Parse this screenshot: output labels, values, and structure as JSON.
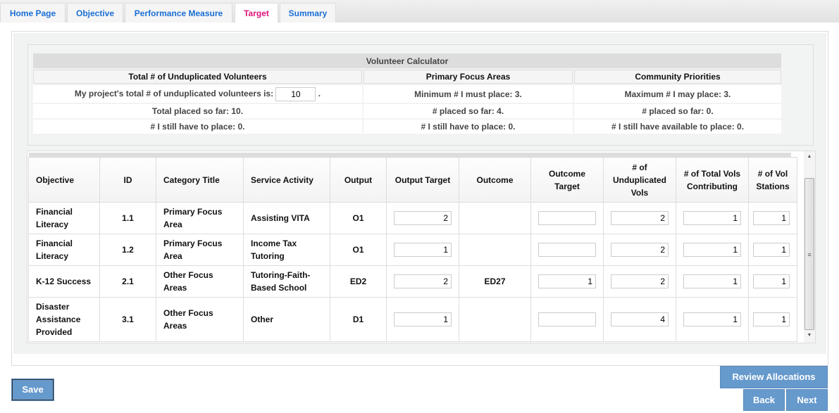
{
  "tabs": [
    {
      "label": "Home Page"
    },
    {
      "label": "Objective"
    },
    {
      "label": "Performance Measure"
    },
    {
      "label": "Target",
      "active": true
    },
    {
      "label": "Summary"
    }
  ],
  "calculator": {
    "title": "Volunteer Calculator",
    "headers": [
      "Total # of Unduplicated Volunteers",
      "Primary Focus Areas",
      "Community Priorities"
    ],
    "total_prefix": "My project's total # of unduplicated volunteers is:",
    "total_value": "10",
    "total_suffix": ".",
    "rows": [
      [
        "Total placed so far: 10.",
        "# placed so far: 4.",
        "# placed so far: 0."
      ],
      [
        "# I still have to place: 0.",
        "# I still have to place: 0.",
        "# I still have available to place: 0."
      ]
    ],
    "primary_min": "Minimum # I must place: 3.",
    "community_max": "Maximum # I may place: 3."
  },
  "grid": {
    "columns": [
      "Objective",
      "ID",
      "Category Title",
      "Service Activity",
      "Output",
      "Output Target",
      "Outcome",
      "Outcome Target",
      "# of Unduplicated Vols",
      "# of Total Vols Contributing",
      "# of Vol Stations"
    ],
    "rows": [
      {
        "objective": "Financial Literacy",
        "id": "1.1",
        "category": "Primary Focus Area",
        "activity": "Assisting VITA",
        "output": "O1",
        "output_target": "2",
        "outcome": "",
        "outcome_target": "",
        "unduplicated": "2",
        "total_vols": "1",
        "stations": "1"
      },
      {
        "objective": "Financial Literacy",
        "id": "1.2",
        "category": "Primary Focus Area",
        "activity": "Income Tax Tutoring",
        "output": "O1",
        "output_target": "1",
        "outcome": "",
        "outcome_target": "",
        "unduplicated": "2",
        "total_vols": "1",
        "stations": "1"
      },
      {
        "objective": "K-12 Success",
        "id": "2.1",
        "category": "Other Focus Areas",
        "activity": "Tutoring-Faith-Based School",
        "output": "ED2",
        "output_target": "2",
        "outcome": "ED27",
        "outcome_target": "1",
        "unduplicated": "2",
        "total_vols": "1",
        "stations": "1"
      },
      {
        "objective": "Disaster Assistance Provided",
        "id": "3.1",
        "category": "Other Focus Areas",
        "activity": "Other",
        "output": "D1",
        "output_target": "1",
        "outcome": "",
        "outcome_target": "",
        "unduplicated": "4",
        "total_vols": "1",
        "stations": "1"
      }
    ]
  },
  "buttons": {
    "save": "Save",
    "review": "Review Allocations",
    "back": "Back",
    "next": "Next"
  },
  "colors": {
    "tab_text": "#1a6fd4",
    "active_tab": "#e0127a",
    "button": "#6699cc"
  }
}
